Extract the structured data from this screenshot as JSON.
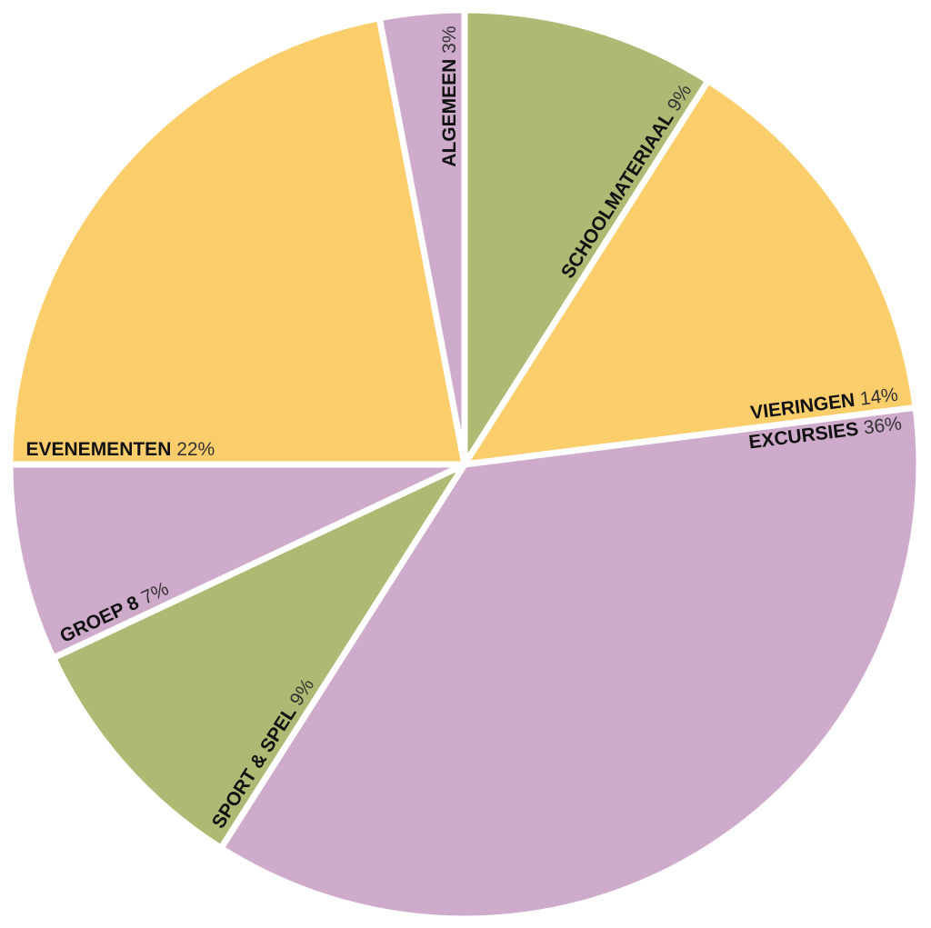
{
  "chart_data": {
    "type": "pie",
    "categories": [
      "SCHOOLMATERIAAL",
      "VIERINGEN",
      "EXCURSIES",
      "SPORT & SPEL",
      "GROEP 8",
      "EVENEMENTEN",
      "ALGEMEEN"
    ],
    "values": [
      9,
      14,
      36,
      9,
      7,
      22,
      3
    ],
    "value_labels": [
      "9%",
      "14%",
      "36%",
      "9%",
      "7%",
      "22%",
      "3%"
    ],
    "colors": [
      "#adba74",
      "#fbcd6b",
      "#ceaacb",
      "#adba74",
      "#ceaacb",
      "#fbcd6b",
      "#ceaacb"
    ]
  }
}
